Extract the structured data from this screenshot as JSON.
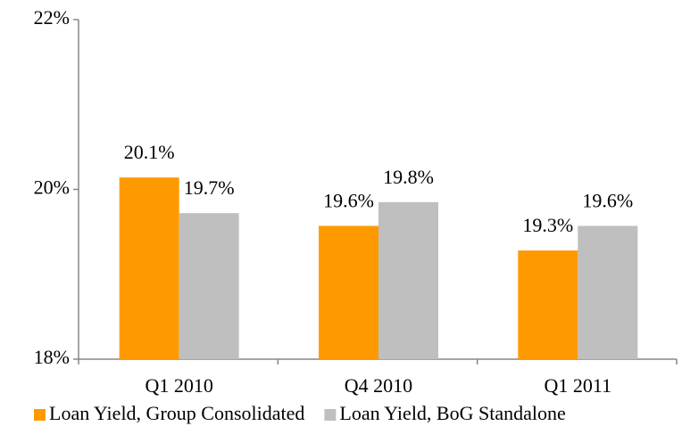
{
  "chart_data": {
    "type": "bar",
    "categories": [
      "Q1 2010",
      "Q4 2010",
      "Q1 2011"
    ],
    "series": [
      {
        "name": "Loan Yield, Group Consolidated",
        "color": "#ff9900",
        "values": [
          20.14,
          19.57,
          19.28
        ],
        "value_labels": [
          "20.1%",
          "19.6%",
          "19.3%"
        ]
      },
      {
        "name": "Loan Yield, BoG Standalone",
        "color": "#bfbfbf",
        "values": [
          19.72,
          19.85,
          19.57
        ],
        "value_labels": [
          "19.7%",
          "19.8%",
          "19.6%"
        ]
      }
    ],
    "ylim": [
      18,
      22
    ],
    "yticks": [
      {
        "value": 18,
        "label": "18%"
      },
      {
        "value": 20,
        "label": "20%"
      },
      {
        "value": 22,
        "label": "22%"
      }
    ],
    "grid": false,
    "legend": "bottom"
  }
}
